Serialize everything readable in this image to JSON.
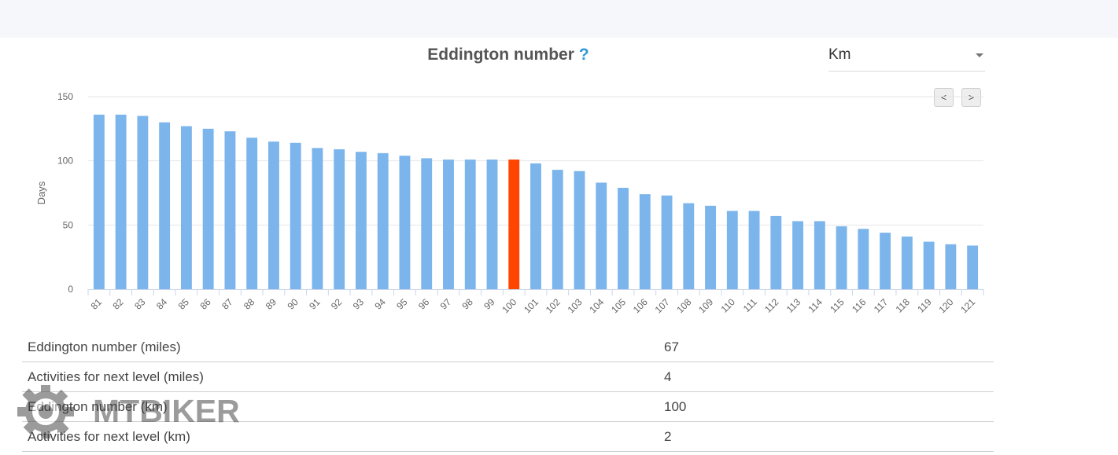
{
  "header": {
    "title": "Eddington number",
    "help_symbol": "?"
  },
  "unit_select": {
    "value": "Km"
  },
  "nav": {
    "prev_label": "<",
    "next_label": ">"
  },
  "chart_data": {
    "type": "bar",
    "title": "Eddington number",
    "xlabel": "",
    "ylabel": "Days",
    "ylim": [
      0,
      150
    ],
    "yticks": [
      0,
      50,
      100,
      150
    ],
    "grid": true,
    "highlight_category": "100",
    "colors": {
      "bar": "#7cb5ec",
      "highlight": "#ff4500",
      "grid": "#e6e6e6",
      "axis": "#ccd6eb"
    },
    "categories": [
      "81",
      "82",
      "83",
      "84",
      "85",
      "86",
      "87",
      "88",
      "89",
      "90",
      "91",
      "92",
      "93",
      "94",
      "95",
      "96",
      "97",
      "98",
      "99",
      "100",
      "101",
      "102",
      "103",
      "104",
      "105",
      "106",
      "107",
      "108",
      "109",
      "110",
      "111",
      "112",
      "113",
      "114",
      "115",
      "116",
      "117",
      "118",
      "119",
      "120",
      "121"
    ],
    "values": [
      136,
      136,
      135,
      130,
      127,
      125,
      123,
      118,
      115,
      114,
      110,
      109,
      107,
      106,
      104,
      102,
      101,
      101,
      101,
      101,
      98,
      93,
      92,
      83,
      79,
      74,
      73,
      67,
      65,
      61,
      61,
      57,
      53,
      53,
      49,
      47,
      44,
      41,
      37,
      35,
      34
    ]
  },
  "stats": [
    {
      "label": "Eddington number (miles)",
      "value": "67"
    },
    {
      "label": "Activities for next level (miles)",
      "value": "4"
    },
    {
      "label": "Eddington number (km)",
      "value": "100"
    },
    {
      "label": "Activities for next level (km)",
      "value": "2"
    }
  ],
  "watermark": {
    "text": "MTBIKER"
  }
}
